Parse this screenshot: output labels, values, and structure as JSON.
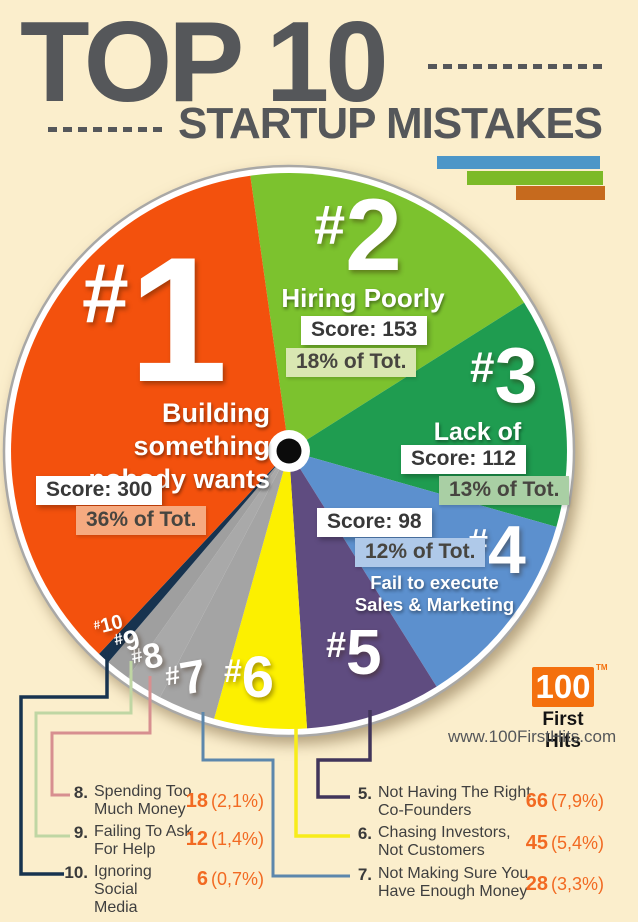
{
  "title": {
    "top": "TOP 10",
    "subtitle": "STARTUP MISTAKES"
  },
  "colors": {
    "background": "#FBEECC",
    "title_gray": "#55575A",
    "legend_value_orange": "#F26A22",
    "logo_orange": "#F4700E"
  },
  "decor": {
    "hash": "#",
    "bars": [
      {
        "name": "blue-bar",
        "color": "#4C96C8"
      },
      {
        "name": "green-bar",
        "color": "#7CBA28"
      },
      {
        "name": "orange-bar",
        "color": "#C66A1E"
      }
    ]
  },
  "chart_data": {
    "type": "pie",
    "title": "TOP 10 STARTUP MISTAKES",
    "center": [
      289,
      451
    ],
    "radius": 278,
    "start_angle_deg": -8,
    "slices": [
      {
        "num": "2",
        "score": 153,
        "title": "Hiring Poorly",
        "score_label": "Score: 153",
        "pct_label": "18% of Tot.",
        "color": "#7CC22E",
        "pct_bg": "#D9E7B2"
      },
      {
        "num": "3",
        "score": 112,
        "title": "Lack of Focus",
        "score_label": "Score: 112",
        "pct_label": "13% of Tot.",
        "color": "#1F9C50",
        "pct_bg": "#A9CFA4"
      },
      {
        "num": "4",
        "score": 98,
        "title_line1": "Fail to execute",
        "title_line2": "Sales & Marketing",
        "score_label": "Score: 98",
        "pct_label": "12% of Tot.",
        "color": "#5C90CE",
        "pct_bg": "#AFC9E9"
      },
      {
        "num": "5",
        "score": 66,
        "color": "#5F4C80",
        "line_color": "#41355A"
      },
      {
        "num": "6",
        "score": 45,
        "color": "#FCF000",
        "line_color": "#F7EC1A"
      },
      {
        "num": "7",
        "score": 28,
        "color": "#A4A4A4",
        "line_color": "#5C87AC"
      },
      {
        "num": "8",
        "score": 18,
        "color": "#A9A9A9",
        "line_color": "#D78F90"
      },
      {
        "num": "9",
        "score": 12,
        "color": "#9F9F9F",
        "line_color": "#BFD6A3"
      },
      {
        "num": "10",
        "score": 6,
        "color": "#17334F",
        "line_color": "#17334F"
      },
      {
        "num": "1",
        "score": 300,
        "title_line1": "Building something",
        "title_line2": "nobody wants",
        "score_label": "Score: 300",
        "pct_label": "36% of Tot.",
        "color": "#F3510D",
        "pct_bg": "#F6AA80"
      }
    ]
  },
  "legend_left": {
    "rows": [
      {
        "num": "8.",
        "line1": "Spending Too",
        "line2": "Much Money",
        "value": "18",
        "pct": "(2,1%)"
      },
      {
        "num": "9.",
        "line1": "Failing To Ask",
        "line2": "For Help",
        "value": "12",
        "pct": "(1,4%)"
      },
      {
        "num": "10.",
        "line1": "Ignoring Social",
        "line2": "Media",
        "value": "6",
        "pct": "(0,7%)"
      }
    ]
  },
  "legend_right": {
    "rows": [
      {
        "num": "5.",
        "line1": "Not Having The Right",
        "line2": "Co-Founders",
        "value": "66",
        "pct": "(7,9%)"
      },
      {
        "num": "6.",
        "line1": "Chasing Investors,",
        "line2": "Not Customers",
        "value": "45",
        "pct": "(5,4%)"
      },
      {
        "num": "7.",
        "line1": "Not Making Sure You",
        "line2": "Have Enough Money",
        "value": "28",
        "pct": "(3,3%)"
      }
    ]
  },
  "logo": {
    "number": "100",
    "tm": "TM",
    "name": "First Hits",
    "url": "www.100FirstHits.com"
  }
}
